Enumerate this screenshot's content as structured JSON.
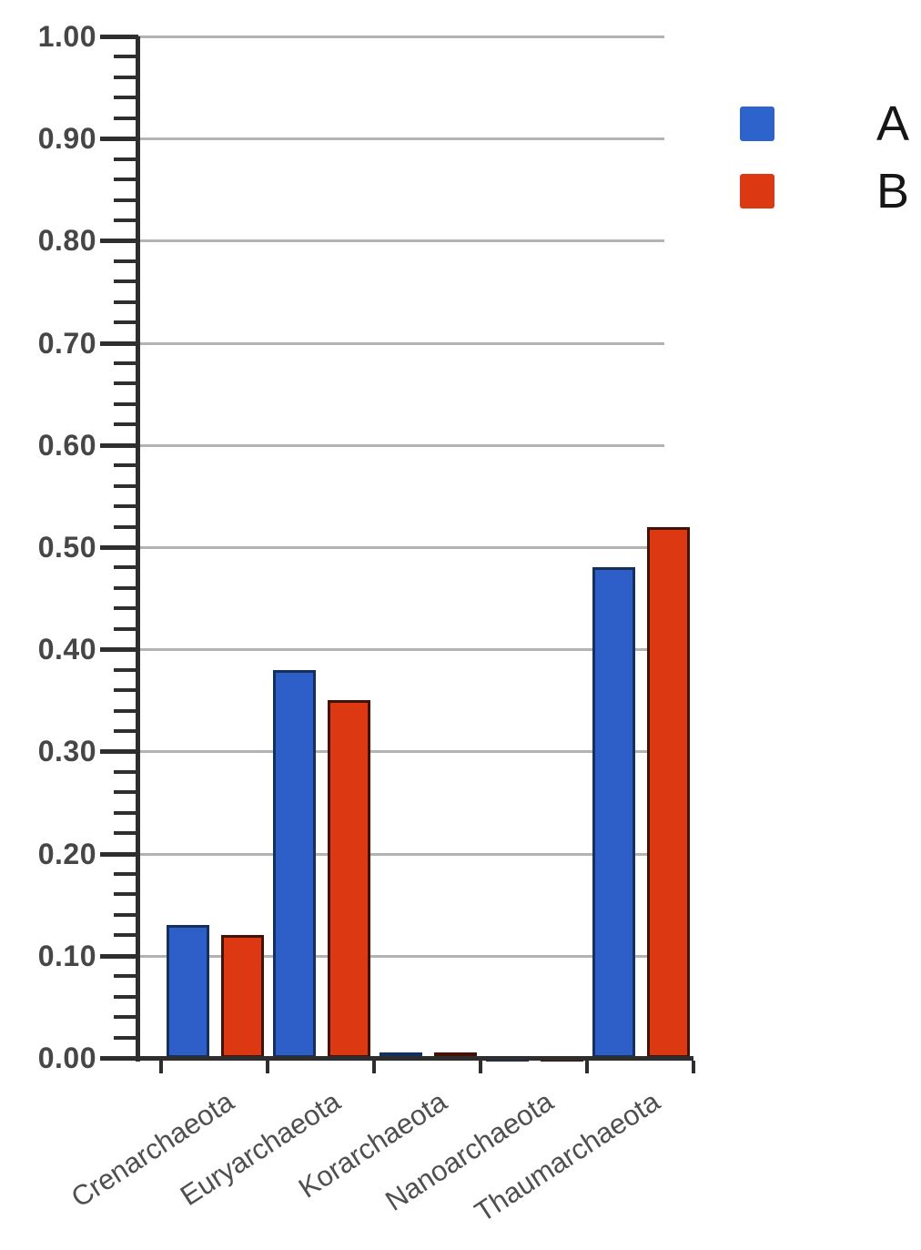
{
  "chart_data": {
    "type": "bar",
    "title": "",
    "xlabel": "",
    "ylabel": "",
    "categories": [
      "Crenarchaeota",
      "Euryarchaeota",
      "Korarchaeota",
      "Nanoarchaeota",
      "Thaumarchaeota"
    ],
    "series": [
      {
        "name": "A",
        "color": "#2e5ec8",
        "border_color": "#15305c",
        "values": [
          0.13,
          0.38,
          0.005,
          0.002,
          0.48
        ]
      },
      {
        "name": "B",
        "color": "#dc3912",
        "border_color": "#441103",
        "values": [
          0.12,
          0.35,
          0.005,
          0.002,
          0.52
        ]
      }
    ],
    "ylim": [
      0,
      1
    ],
    "y_tick_labels": [
      "1.00",
      "0.90",
      "0.80",
      "0.70",
      "0.60",
      "0.50",
      "0.40",
      "0.30",
      "0.20",
      "0.10",
      "0.00"
    ],
    "y_major_step": 0.1,
    "y_minor_step": 0.02,
    "grid": true,
    "legend_position": "top-right"
  },
  "legend": {
    "items": [
      {
        "label": "A",
        "color": "#2f63cc"
      },
      {
        "label": "B",
        "color": "#dc3912"
      }
    ]
  },
  "colors": {
    "background": "#ffffff",
    "gridline": "#b3b3b3",
    "axis": "#2e2e2e",
    "y_label_text": "#464646",
    "x_label_text": "#4f4f4f",
    "legend_text": "#161616"
  }
}
